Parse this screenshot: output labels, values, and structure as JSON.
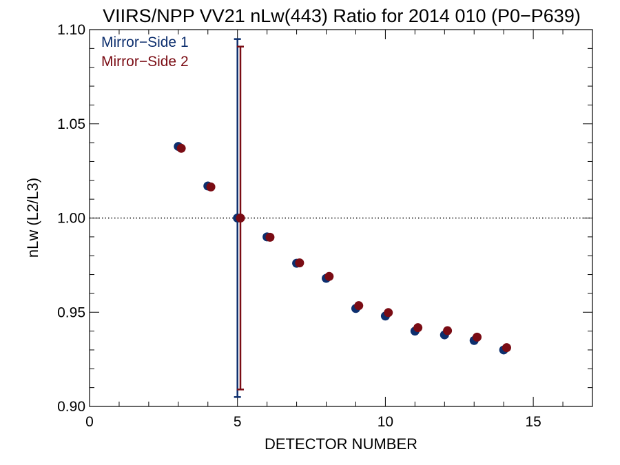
{
  "chart_data": {
    "type": "scatter",
    "title": "VIIRS/NPP VV21 nLw(443) Ratio for 2014 010 (P0−P639)",
    "xlabel": "DETECTOR NUMBER",
    "ylabel": "nLw (L2/L3)",
    "xlim": [
      0,
      17
    ],
    "ylim": [
      0.9,
      1.1
    ],
    "x_ticks": [
      0,
      5,
      10,
      15
    ],
    "x_tick_labels": [
      "0",
      "5",
      "10",
      "15"
    ],
    "y_ticks": [
      0.9,
      0.95,
      1.0,
      1.05,
      1.1
    ],
    "y_tick_labels": [
      "0.90",
      "0.95",
      "1.00",
      "1.05",
      "1.10"
    ],
    "reference_line": {
      "y": 1.0,
      "style": "dotted"
    },
    "grid": false,
    "legend_position": "top-left",
    "series": [
      {
        "name": "Mirror−Side 1",
        "color": "#0d2f6e",
        "x": [
          3,
          4,
          5,
          6,
          7,
          8,
          9,
          10,
          11,
          12,
          13,
          14
        ],
        "y": [
          1.038,
          1.017,
          1.0,
          0.99,
          0.976,
          0.968,
          0.952,
          0.948,
          0.94,
          0.938,
          0.935,
          0.93
        ],
        "error_bar": {
          "x": 5,
          "low": 0.905,
          "high": 1.095
        }
      },
      {
        "name": "Mirror−Side 2",
        "color": "#7a0c14",
        "x": [
          3.1,
          4.1,
          5.1,
          6.1,
          7.1,
          8.1,
          9.1,
          10.1,
          11.1,
          12.1,
          13.1,
          14.1
        ],
        "y": [
          1.037,
          1.0165,
          1.0,
          0.9898,
          0.9762,
          0.969,
          0.9535,
          0.9498,
          0.9418,
          0.9402,
          0.9368,
          0.9312
        ],
        "error_bar": {
          "x": 5.1,
          "low": 0.909,
          "high": 1.091
        }
      }
    ]
  }
}
